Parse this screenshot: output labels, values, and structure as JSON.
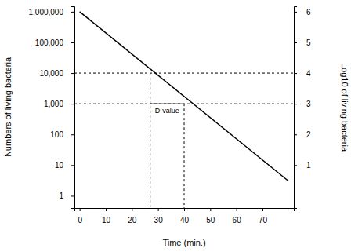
{
  "chart_data": {
    "type": "line",
    "x_label": "Time (min.)",
    "y_label": "Numbers of living bacteria",
    "y2_label": "Log10 of living bacteria",
    "log": "y",
    "x": [
      0,
      80
    ],
    "series": [
      {
        "values": [
          1000000,
          3
        ],
        "color": "#000000",
        "line_style": "solid"
      }
    ],
    "xlim": [
      -2,
      82
    ],
    "xticks": [
      0,
      10,
      20,
      30,
      40,
      50,
      60,
      70
    ],
    "ylim": [
      0.4,
      1500000
    ],
    "yticks": [
      1,
      10,
      100,
      {
        "value": 1000,
        "label": "1,000"
      },
      {
        "value": 10000,
        "label": "10,000"
      },
      {
        "value": 100000,
        "label": "100,000"
      },
      {
        "value": 1000000,
        "label": "1,000,000"
      }
    ],
    "y2lim": [
      -0.398,
      6.176
    ],
    "y2ticks": [
      1,
      2,
      3,
      4,
      5,
      6
    ],
    "guides": {
      "x": [
        27,
        40
      ],
      "y": [
        10000,
        1000
      ],
      "line_style": "dashed"
    },
    "annotations": [
      {
        "text": "D-value",
        "x": [
          27,
          40
        ],
        "y": 1000
      }
    ],
    "grid": false
  }
}
